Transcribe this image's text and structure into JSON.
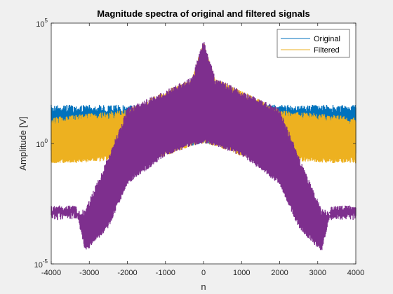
{
  "chart_data": {
    "type": "line",
    "title": "Magnitude spectra of original and filtered signals",
    "xlabel": "n",
    "ylabel": "Amplitude [V]",
    "xlim": [
      -4000,
      4000
    ],
    "ylim_exponents": [
      -5,
      5
    ],
    "y_scale": "log",
    "x_ticks": [
      -4000,
      -3000,
      -2000,
      -1000,
      0,
      1000,
      2000,
      3000,
      4000
    ],
    "x_tick_labels": [
      "-4000",
      "-3000",
      "-2000",
      "-1000",
      "0",
      "1000",
      "2000",
      "3000",
      "4000"
    ],
    "y_ticks": [
      {
        "base": "10",
        "exp": "5",
        "value_exp": 5
      },
      {
        "base": "10",
        "exp": "0",
        "value_exp": 0
      },
      {
        "base": "10",
        "exp": "-5",
        "value_exp": -5
      }
    ],
    "legend_position": "top-right",
    "series": [
      {
        "name": "Original",
        "color": "#0072BD",
        "envelope": {
          "n": [
            -4000,
            -3000,
            -2000,
            -1000,
            0,
            1000,
            2000,
            3000,
            4000
          ],
          "upper": [
            40,
            40,
            40,
            50,
            100,
            50,
            40,
            40,
            40
          ],
          "lower": [
            0.3,
            0.3,
            0.3,
            0.5,
            1,
            0.5,
            0.3,
            0.3,
            0.3
          ]
        }
      },
      {
        "name": "Filtered",
        "color": "#EDB120",
        "envelope": {
          "n": [
            -4000,
            -3500,
            -2000,
            -1000,
            -300,
            0,
            300,
            1000,
            2000,
            3500,
            4000
          ],
          "upper": [
            12,
            15,
            25,
            160,
            500,
            20000,
            500,
            160,
            25,
            15,
            12
          ],
          "lower": [
            0.15,
            0.15,
            0.2,
            0.3,
            0.8,
            1,
            0.8,
            0.3,
            0.2,
            0.15,
            0.15
          ]
        }
      },
      {
        "name": "",
        "color": "#7E2F8E",
        "envelope": {
          "n": [
            -4000,
            -3350,
            -3100,
            -2500,
            -2000,
            -1000,
            -300,
            0,
            300,
            1000,
            2000,
            2500,
            3100,
            3350,
            4000
          ],
          "upper": [
            0.0015,
            0.0015,
            0.002,
            0.3,
            30,
            160,
            600,
            20000,
            600,
            160,
            30,
            0.3,
            0.002,
            0.0015,
            0.0015
          ],
          "lower": [
            0.0015,
            0.0015,
            3e-05,
            0.0003,
            0.02,
            0.3,
            0.8,
            1,
            0.8,
            0.3,
            0.02,
            0.0003,
            3e-05,
            0.0015,
            0.0015
          ]
        }
      }
    ]
  }
}
